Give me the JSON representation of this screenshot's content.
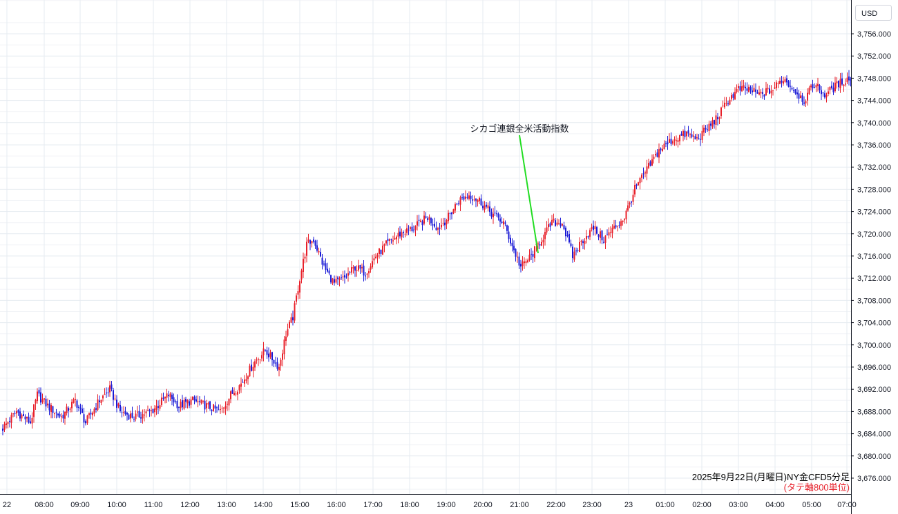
{
  "chart_data": {
    "type": "candlestick",
    "currency": "USD",
    "caption": "2025年9月22日(月曜日)NY金CFD5分足",
    "caption_note": "(タテ軸800単位)",
    "annotation": {
      "text": "シカゴ連銀全米活動指数",
      "x_time": "21:35",
      "y_value": 3716.5
    },
    "ylim": [
      3673,
      3762
    ],
    "yticks": [
      3676,
      3680,
      3684,
      3688,
      3692,
      3696,
      3700,
      3704,
      3708,
      3712,
      3716,
      3720,
      3724,
      3728,
      3732,
      3736,
      3740,
      3744,
      3748,
      3752,
      3756
    ],
    "ytick_labels": [
      "3,676.000",
      "3,680.000",
      "3,684.000",
      "3,688.000",
      "3,692.000",
      "3,696.000",
      "3,700.000",
      "3,704.000",
      "3,708.000",
      "3,712.000",
      "3,716.000",
      "3,720.000",
      "3,724.000",
      "3,728.000",
      "3,732.000",
      "3,736.000",
      "3,740.000",
      "3,744.000",
      "3,748.000",
      "3,752.000",
      "3,756.000"
    ],
    "xticks": [
      "22",
      "08:00",
      "09:00",
      "10:00",
      "11:00",
      "12:00",
      "13:00",
      "14:00",
      "15:00",
      "16:00",
      "17:00",
      "18:00",
      "19:00",
      "20:00",
      "21:00",
      "22:00",
      "23:00",
      "23",
      "01:00",
      "02:00",
      "03:00",
      "04:00",
      "05:00",
      "07:00"
    ],
    "grid": true,
    "up_color": "#e8202a",
    "down_color": "#1a1ad6",
    "annotation_color": "#22dd22",
    "close_path": [
      [
        0,
        3685
      ],
      [
        8,
        3688
      ],
      [
        16,
        3686
      ],
      [
        20,
        3691
      ],
      [
        26,
        3689
      ],
      [
        34,
        3687
      ],
      [
        42,
        3690
      ],
      [
        48,
        3686
      ],
      [
        56,
        3690
      ],
      [
        62,
        3692
      ],
      [
        68,
        3688
      ],
      [
        76,
        3687
      ],
      [
        86,
        3688
      ],
      [
        96,
        3691
      ],
      [
        102,
        3689
      ],
      [
        110,
        3690
      ],
      [
        118,
        3689
      ],
      [
        126,
        3688
      ],
      [
        132,
        3691
      ],
      [
        138,
        3693
      ],
      [
        146,
        3697
      ],
      [
        152,
        3699
      ],
      [
        160,
        3696
      ],
      [
        164,
        3702
      ],
      [
        168,
        3705
      ],
      [
        172,
        3712
      ],
      [
        176,
        3718
      ],
      [
        180,
        3719
      ],
      [
        186,
        3714
      ],
      [
        192,
        3711
      ],
      [
        198,
        3712
      ],
      [
        204,
        3714
      ],
      [
        210,
        3713
      ],
      [
        216,
        3716
      ],
      [
        222,
        3718
      ],
      [
        230,
        3720
      ],
      [
        238,
        3721
      ],
      [
        246,
        3723
      ],
      [
        252,
        3721
      ],
      [
        258,
        3723
      ],
      [
        264,
        3726
      ],
      [
        270,
        3727
      ],
      [
        276,
        3726
      ],
      [
        282,
        3724
      ],
      [
        290,
        3722
      ],
      [
        296,
        3717
      ],
      [
        300,
        3714
      ],
      [
        306,
        3716
      ],
      [
        312,
        3719
      ],
      [
        318,
        3722
      ],
      [
        324,
        3722
      ],
      [
        330,
        3716
      ],
      [
        336,
        3719
      ],
      [
        342,
        3721
      ],
      [
        348,
        3719
      ],
      [
        354,
        3721
      ],
      [
        360,
        3723
      ],
      [
        366,
        3728
      ],
      [
        372,
        3731
      ],
      [
        380,
        3735
      ],
      [
        388,
        3737
      ],
      [
        396,
        3738
      ],
      [
        402,
        3737
      ],
      [
        408,
        3739
      ],
      [
        414,
        3741
      ],
      [
        420,
        3744
      ],
      [
        426,
        3746
      ],
      [
        432,
        3746
      ],
      [
        438,
        3745
      ],
      [
        446,
        3746
      ],
      [
        452,
        3748
      ],
      [
        458,
        3746
      ],
      [
        464,
        3744
      ],
      [
        470,
        3747
      ],
      [
        476,
        3745
      ],
      [
        484,
        3747
      ],
      [
        490,
        3748
      ],
      [
        494,
        3746
      ]
    ]
  }
}
